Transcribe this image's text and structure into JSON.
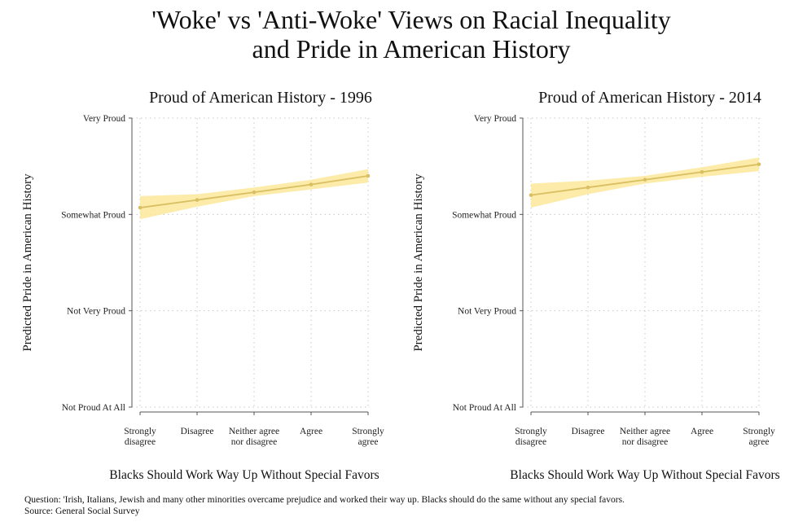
{
  "title": [
    "'Woke' vs 'Anti-Woke' Views on Racial Inequality",
    "and Pride in American History"
  ],
  "chart_data": [
    {
      "type": "line",
      "title": "Proud of American History - 1996",
      "xlabel": "Blacks Should Work Way Up Without Special Favors",
      "ylabel": "Predicted Pride in American History",
      "categories": [
        [
          "Strongly",
          "disagree"
        ],
        [
          "Disagree"
        ],
        [
          "Neither agree",
          "nor disagree"
        ],
        [
          "Agree"
        ],
        [
          "Strongly",
          "agree"
        ]
      ],
      "y_ticks": [
        "Not Proud At All",
        "Not Very Proud",
        "Somewhat Proud",
        "Very Proud"
      ],
      "ylim": [
        1,
        4
      ],
      "series": [
        {
          "name": "Predicted pride",
          "values": [
            3.07,
            3.15,
            3.23,
            3.31,
            3.4
          ],
          "ci_low": [
            2.95,
            3.08,
            3.19,
            3.26,
            3.33
          ],
          "ci_high": [
            3.19,
            3.21,
            3.28,
            3.36,
            3.47
          ]
        }
      ],
      "grid": true
    },
    {
      "type": "line",
      "title": "Proud of American History - 2014",
      "xlabel": "Blacks Should Work Way Up Without Special Favors",
      "ylabel": "Predicted Pride in American History",
      "categories": [
        [
          "Strongly",
          "disagree"
        ],
        [
          "Disagree"
        ],
        [
          "Neither agree",
          "nor disagree"
        ],
        [
          "Agree"
        ],
        [
          "Strongly",
          "agree"
        ]
      ],
      "y_ticks": [
        "Not Proud At All",
        "Not Very Proud",
        "Somewhat Proud",
        "Very Proud"
      ],
      "ylim": [
        1,
        4
      ],
      "series": [
        {
          "name": "Predicted pride",
          "values": [
            3.2,
            3.28,
            3.36,
            3.44,
            3.52
          ],
          "ci_low": [
            3.07,
            3.21,
            3.32,
            3.39,
            3.45
          ],
          "ci_high": [
            3.32,
            3.35,
            3.4,
            3.49,
            3.59
          ]
        }
      ],
      "grid": true
    }
  ],
  "colors": {
    "line": "#d9bf62",
    "band": "#fbe89a",
    "axis": "#555555",
    "grid": "#c8c8c8"
  },
  "footnote": {
    "question": "Question: 'Irish, Italians, Jewish and many other minorities overcame prejudice and worked their way up. Blacks should do the same without any special favors.",
    "source": "Source: General Social Survey"
  }
}
